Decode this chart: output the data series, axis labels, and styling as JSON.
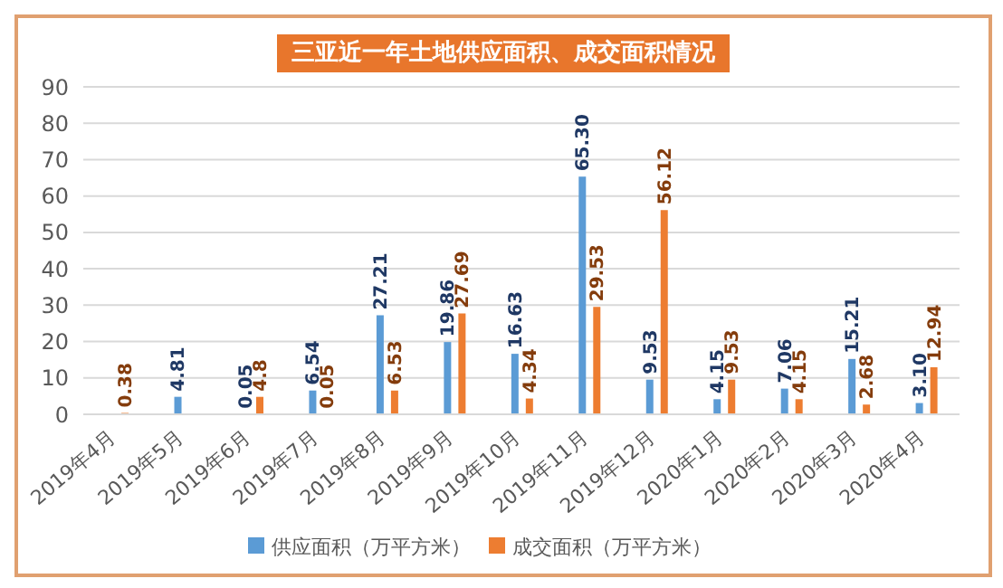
{
  "chart_data": {
    "type": "bar",
    "title": "三亚近一年土地供应面积、成交面积情况",
    "categories": [
      "2019年4月",
      "2019年5月",
      "2019年6月",
      "2019年7月",
      "2019年8月",
      "2019年9月",
      "2019年10月",
      "2019年11月",
      "2019年12月",
      "2020年1月",
      "2020年2月",
      "2020年3月",
      "2020年4月"
    ],
    "series": [
      {
        "name": "供应面积（万平方米）",
        "color": "#5b9bd5",
        "values": [
          null,
          4.81,
          0.05,
          6.54,
          27.21,
          19.86,
          16.63,
          65.3,
          9.53,
          4.15,
          7.06,
          15.21,
          3.1
        ],
        "value_labels": [
          null,
          "4.81",
          "0.05",
          "6.54",
          "27.21",
          "19.86",
          "16.63",
          "65.30",
          "9.53",
          "4.15",
          "7.06",
          "15.21",
          "3.10"
        ]
      },
      {
        "name": "成交面积（万平方米）",
        "color": "#ed7d31",
        "values": [
          0.38,
          null,
          4.8,
          0.05,
          6.53,
          27.69,
          4.34,
          29.53,
          56.12,
          9.53,
          4.15,
          2.68,
          12.94
        ],
        "value_labels": [
          "0.38",
          null,
          "4.8",
          "0.05",
          "6.53",
          "27.69",
          "4.34",
          "29.53",
          "56.12",
          "9.53",
          "4.15",
          "2.68",
          "12.94"
        ]
      }
    ],
    "ylim": [
      0,
      90
    ],
    "yticks": [
      0,
      10,
      20,
      30,
      40,
      50,
      60,
      70,
      80,
      90
    ],
    "grid": "y",
    "legend": "bottom"
  }
}
